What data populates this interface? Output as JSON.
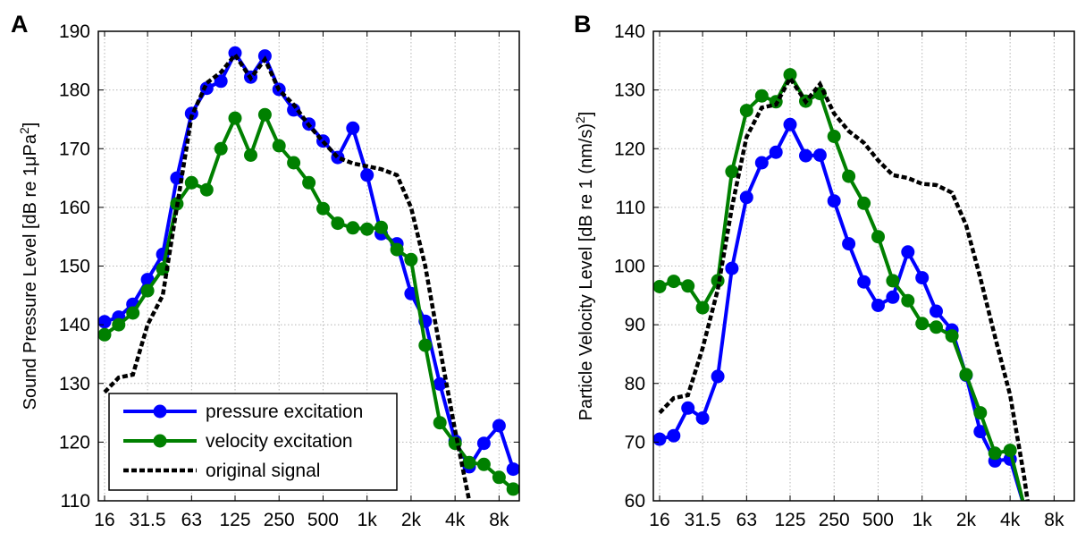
{
  "chart_data": [
    {
      "type": "line",
      "panel_label": "A",
      "ylabel": "Sound Pressure Level [dB re 1μPa",
      "ylabel_sup": "2",
      "ylabel_end": "]",
      "x_scale": "log2",
      "xlim": [
        14.5,
        11000
      ],
      "ylim": [
        110,
        190
      ],
      "yticks": [
        "110",
        "120",
        "130",
        "140",
        "150",
        "160",
        "170",
        "180",
        "190"
      ],
      "xticks": [
        {
          "label": "16",
          "value": 16
        },
        {
          "label": "31.5",
          "value": 31.5
        },
        {
          "label": "63",
          "value": 63
        },
        {
          "label": "125",
          "value": 125
        },
        {
          "label": "250",
          "value": 250
        },
        {
          "label": "500",
          "value": 500
        },
        {
          "label": "1k",
          "value": 1000
        },
        {
          "label": "2k",
          "value": 2000
        },
        {
          "label": "4k",
          "value": 4000
        },
        {
          "label": "8k",
          "value": 8000
        }
      ],
      "grid": true,
      "legend": {
        "placement": "bottom-left",
        "entries": [
          "pressure excitation",
          "velocity excitation",
          "original signal"
        ]
      },
      "series": [
        {
          "name": "pressure excitation",
          "color": "#0000ff",
          "style": "solid-markers",
          "x": [
            16,
            20,
            25,
            31.5,
            40,
            50,
            63,
            80,
            100,
            125,
            160,
            200,
            250,
            315,
            400,
            500,
            630,
            800,
            1000,
            1250,
            1600,
            2000,
            2500,
            3150,
            4000,
            5000,
            6300,
            8000,
            10000
          ],
          "y": [
            140.5,
            141.3,
            143.5,
            147.7,
            152,
            165,
            176,
            180.3,
            181.5,
            186.3,
            182.2,
            185.8,
            180.1,
            176.6,
            174.2,
            171.3,
            168.5,
            173.5,
            165.5,
            155.5,
            153.8,
            145.3,
            140.6,
            129.9,
            120.2,
            115.8,
            119.8,
            122.8,
            115.4
          ]
        },
        {
          "name": "velocity excitation",
          "color": "#008000",
          "style": "solid-markers",
          "x": [
            16,
            20,
            25,
            31.5,
            40,
            50,
            63,
            80,
            100,
            125,
            160,
            200,
            250,
            315,
            400,
            500,
            630,
            800,
            1000,
            1250,
            1600,
            2000,
            2500,
            3150,
            4000,
            5000,
            6300,
            8000,
            10000
          ],
          "y": [
            138.3,
            140,
            142,
            145.8,
            149.5,
            160.6,
            164.2,
            163,
            170,
            175.2,
            168.9,
            175.8,
            170.5,
            167.6,
            164.2,
            159.8,
            157.3,
            156.5,
            156.3,
            156.6,
            152.8,
            151.1,
            136.5,
            123.3,
            119.8,
            116.5,
            116.2,
            114,
            112
          ]
        },
        {
          "name": "original signal",
          "color": "#000000",
          "style": "dashed",
          "x": [
            16,
            20,
            25,
            31.5,
            40,
            50,
            63,
            80,
            100,
            125,
            160,
            200,
            250,
            315,
            400,
            500,
            630,
            800,
            1000,
            1250,
            1600,
            2000,
            2500,
            3150,
            4000,
            5000,
            5600
          ],
          "y": [
            128.5,
            131,
            131.5,
            140,
            145,
            160,
            175.5,
            181.2,
            183,
            186,
            182,
            185.2,
            180,
            177.5,
            174,
            171.2,
            168.5,
            167.5,
            167,
            166.5,
            165.5,
            160,
            150,
            136,
            122,
            110,
            104
          ]
        }
      ]
    },
    {
      "type": "line",
      "panel_label": "B",
      "ylabel": "Particle Velocity Level [dB re 1 (nm/s)",
      "ylabel_sup": "2",
      "ylabel_end": "]",
      "x_scale": "log2",
      "xlim": [
        14.5,
        11000
      ],
      "ylim": [
        60,
        140
      ],
      "yticks": [
        "60",
        "70",
        "80",
        "90",
        "100",
        "110",
        "120",
        "130",
        "140"
      ],
      "xticks": [
        {
          "label": "16",
          "value": 16
        },
        {
          "label": "31.5",
          "value": 31.5
        },
        {
          "label": "63",
          "value": 63
        },
        {
          "label": "125",
          "value": 125
        },
        {
          "label": "250",
          "value": 250
        },
        {
          "label": "500",
          "value": 500
        },
        {
          "label": "1k",
          "value": 1000
        },
        {
          "label": "2k",
          "value": 2000
        },
        {
          "label": "4k",
          "value": 4000
        },
        {
          "label": "8k",
          "value": 8000
        }
      ],
      "grid": true,
      "series": [
        {
          "name": "pressure excitation",
          "color": "#0000ff",
          "style": "solid-markers",
          "x": [
            16,
            20,
            25,
            31.5,
            40,
            50,
            63,
            80,
            100,
            125,
            160,
            200,
            250,
            315,
            400,
            500,
            630,
            800,
            1000,
            1250,
            1600,
            2000,
            2500,
            3150,
            4000,
            5000
          ],
          "y": [
            70.5,
            71.1,
            75.8,
            74.1,
            81.2,
            99.6,
            111.7,
            117.6,
            119.4,
            124.1,
            118.8,
            118.9,
            111.1,
            103.8,
            97.3,
            93.3,
            94.7,
            102.4,
            98,
            92.3,
            89.1,
            81.4,
            71.8,
            66.8,
            67.1,
            59
          ]
        },
        {
          "name": "velocity excitation",
          "color": "#008000",
          "style": "solid-markers",
          "x": [
            16,
            20,
            25,
            31.5,
            40,
            50,
            63,
            80,
            100,
            125,
            160,
            200,
            250,
            315,
            400,
            500,
            630,
            800,
            1000,
            1250,
            1600,
            2000,
            2500,
            3150,
            4000,
            5000
          ],
          "y": [
            96.5,
            97.4,
            96.6,
            92.9,
            97.5,
            116.1,
            126.5,
            129,
            128,
            132.6,
            128.1,
            129.4,
            122.1,
            115.3,
            110.7,
            105,
            97.5,
            94.1,
            90.2,
            89.6,
            88.1,
            81.5,
            75,
            68.1,
            68.6,
            59
          ]
        },
        {
          "name": "original signal",
          "color": "#000000",
          "style": "dashed",
          "x": [
            16,
            20,
            25,
            31.5,
            40,
            50,
            63,
            80,
            100,
            125,
            160,
            200,
            250,
            315,
            400,
            500,
            630,
            800,
            1000,
            1250,
            1600,
            2000,
            2500,
            3150,
            4000,
            5000,
            5400
          ],
          "y": [
            75,
            77.5,
            78,
            86,
            96,
            110,
            122,
            127,
            127.5,
            132,
            128,
            131,
            126,
            123,
            121,
            118,
            115.5,
            115,
            114,
            113.8,
            112.5,
            107,
            98,
            88,
            78,
            64,
            58
          ]
        }
      ]
    }
  ]
}
